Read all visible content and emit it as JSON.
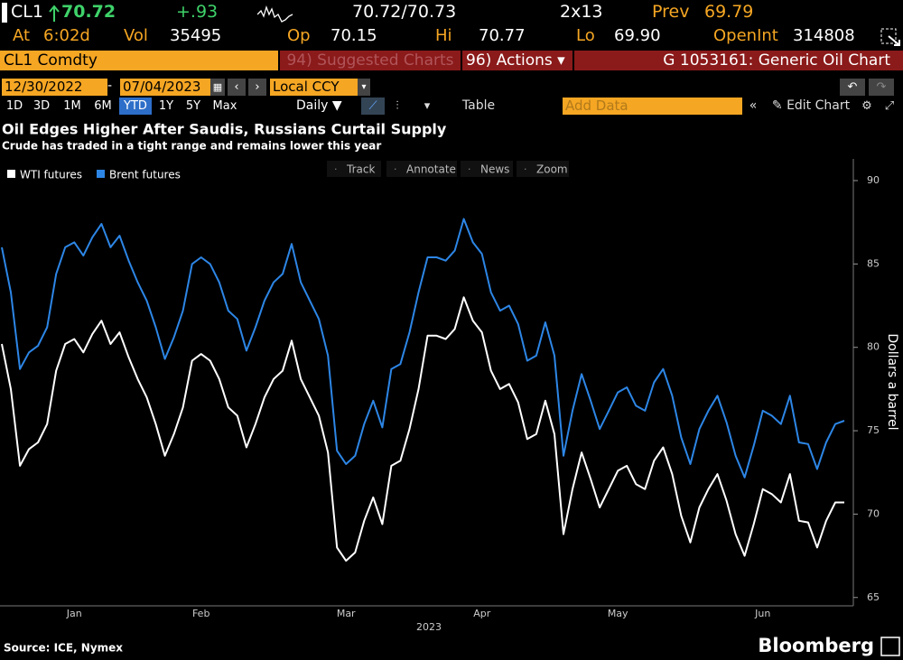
{
  "header": {
    "ticker": "CL1",
    "last": "70.72",
    "change": "+.93",
    "bid_ask": "70.72/70.73",
    "size": "2x13",
    "prev_label": "Prev",
    "prev": "69.79",
    "at_label": "At",
    "at": "6:02d",
    "vol_label": "Vol",
    "vol": "35495",
    "op_label": "Op",
    "op": "70.15",
    "hi_label": "Hi",
    "hi": "70.77",
    "lo_label": "Lo",
    "lo": "69.90",
    "oi_label": "OpenInt",
    "oi": "314808",
    "security": "CL1 Comdty",
    "suggested": "94) Suggested Charts",
    "actions": "96) Actions",
    "chart_id": "G 1053161: Generic Oil Chart",
    "start_date": "12/30/2022",
    "end_date": "07/04/2023",
    "currency": "Local CCY",
    "periods": [
      "1D",
      "3D",
      "1M",
      "6M",
      "YTD",
      "1Y",
      "5Y",
      "Max"
    ],
    "frequency": "Daily",
    "table": "Table",
    "add_data": "Add Data",
    "edit_chart": "Edit Chart",
    "tools": [
      "Track",
      "Annotate",
      "News",
      "Zoom"
    ],
    "source": "Source: ICE, Nymex",
    "brand": "Bloomberg"
  },
  "chart_data": {
    "type": "line",
    "title": "Oil Edges Higher After Saudis, Russians Curtail Supply",
    "subtitle": "Crude has traded in a tight range and remains lower this year",
    "ylabel": "Dollars a barrel",
    "xlabel": "2023",
    "categories": [
      null,
      null,
      null,
      null,
      null,
      null,
      null,
      null,
      "Jan",
      null,
      null,
      null,
      null,
      null,
      null,
      null,
      null,
      null,
      null,
      null,
      null,
      null,
      "Feb",
      null,
      null,
      null,
      null,
      null,
      null,
      null,
      null,
      null,
      null,
      null,
      null,
      null,
      null,
      null,
      "Mar",
      null,
      null,
      null,
      null,
      null,
      null,
      null,
      null,
      null,
      null,
      null,
      null,
      null,
      null,
      "Apr",
      null,
      null,
      null,
      null,
      null,
      null,
      null,
      null,
      null,
      null,
      null,
      null,
      null,
      null,
      "May",
      null,
      null,
      null,
      null,
      null,
      null,
      null,
      null,
      null,
      null,
      null,
      null,
      null,
      null,
      null,
      "Jun",
      null,
      null,
      null,
      null,
      null,
      null,
      null,
      null,
      null
    ],
    "series": [
      {
        "name": "WTI futures",
        "color": "#ffffff",
        "values": [
          80.2,
          77.5,
          72.9,
          73.9,
          74.3,
          75.4,
          78.6,
          80.2,
          80.5,
          79.7,
          80.8,
          81.6,
          80.2,
          80.9,
          79.4,
          78.1,
          77.0,
          75.4,
          73.5,
          74.8,
          76.4,
          79.2,
          79.6,
          79.2,
          78.1,
          76.4,
          75.9,
          74.0,
          75.4,
          77.0,
          78.1,
          78.6,
          80.4,
          78.1,
          77.0,
          75.9,
          73.7,
          68.0,
          67.2,
          67.7,
          69.6,
          71.0,
          69.4,
          72.9,
          73.2,
          75.1,
          77.5,
          80.7,
          80.7,
          80.5,
          81.1,
          83.0,
          81.6,
          80.9,
          78.6,
          77.5,
          77.8,
          76.7,
          74.5,
          74.8,
          76.8,
          74.8,
          68.8,
          71.5,
          73.7,
          72.1,
          70.4,
          71.5,
          72.6,
          72.9,
          71.8,
          71.5,
          73.2,
          74.0,
          72.4,
          69.9,
          68.3,
          70.4,
          71.5,
          72.4,
          70.8,
          68.8,
          67.5,
          69.4,
          71.5,
          71.2,
          70.7,
          72.4,
          69.6,
          69.5,
          68.0,
          69.6,
          70.7,
          70.7
        ]
      },
      {
        "name": "Brent futures",
        "color": "#2d86e6",
        "values": [
          86.0,
          83.3,
          78.7,
          79.7,
          80.1,
          81.2,
          84.4,
          86.0,
          86.3,
          85.5,
          86.6,
          87.4,
          86.0,
          86.7,
          85.2,
          83.9,
          82.8,
          81.2,
          79.3,
          80.6,
          82.2,
          85.0,
          85.4,
          85.0,
          83.9,
          82.2,
          81.7,
          79.8,
          81.2,
          82.8,
          83.9,
          84.4,
          86.2,
          83.9,
          82.8,
          81.7,
          79.5,
          73.8,
          73.0,
          73.5,
          75.4,
          76.8,
          75.2,
          78.7,
          79.0,
          80.9,
          83.3,
          85.4,
          85.4,
          85.2,
          85.8,
          87.7,
          86.3,
          85.6,
          83.3,
          82.2,
          82.5,
          81.4,
          79.2,
          79.5,
          81.5,
          79.5,
          73.5,
          76.2,
          78.4,
          76.8,
          75.1,
          76.2,
          77.3,
          77.6,
          76.5,
          76.2,
          77.9,
          78.7,
          77.1,
          74.6,
          73.0,
          75.1,
          76.2,
          77.1,
          75.5,
          73.5,
          72.2,
          74.1,
          76.2,
          75.9,
          75.4,
          77.1,
          74.3,
          74.2,
          72.7,
          74.3,
          75.4,
          75.6
        ]
      }
    ],
    "ylim": [
      64.5,
      91.3
    ],
    "yticks": [
      65,
      70,
      75,
      80,
      85,
      90
    ],
    "grid": false,
    "legend": "top-left"
  }
}
